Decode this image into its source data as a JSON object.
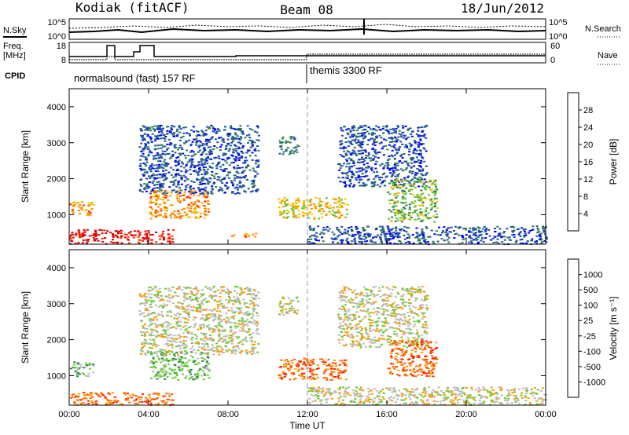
{
  "header": {
    "radar": "Kodiak (fitACF)",
    "beam": "Beam 08",
    "date": "18/Jun/2012"
  },
  "top_panels": {
    "nsky_label": "N.Sky",
    "nsearch_label": "N.Search",
    "noise_ticks": [
      "10^5",
      "10^0"
    ],
    "freq_label_1": "Freq.",
    "freq_label_2": "[MHz]",
    "freq_ticks": [
      "18",
      "8"
    ],
    "nave_label": "Nave",
    "nave_ticks": [
      "60",
      "0"
    ],
    "cpid_label": "CPID",
    "cpid_segments": [
      "normalsound (fast) 157 RF",
      "themis 3300 RF"
    ]
  },
  "chart_data": [
    {
      "type": "heatmap",
      "title": "",
      "xlabel": "",
      "ylabel": "Slant Range [km]",
      "xlim": [
        0,
        24
      ],
      "ylim": [
        180,
        4500
      ],
      "y_ticks": [
        "1000",
        "2000",
        "3000",
        "4000"
      ],
      "colorbar_label": "Power [dB]",
      "colorbar_ticks": [
        "4",
        "8",
        "12",
        "16",
        "20",
        "24",
        "28"
      ],
      "colorbar_colors": [
        "#0000ff",
        "#1f4fa8",
        "#2e7d57",
        "#5fbf3a",
        "#f5c000",
        "#ff8c00",
        "#ff3000",
        "#e00000"
      ],
      "echo_regions": [
        {
          "t0": 0.0,
          "t1": 5.2,
          "r0": 200,
          "r1": 600,
          "level": 7
        },
        {
          "t0": 0.0,
          "t1": 1.2,
          "r0": 1000,
          "r1": 1400,
          "level": 5
        },
        {
          "t0": 4.0,
          "t1": 7.0,
          "r0": 900,
          "r1": 1700,
          "level": 5
        },
        {
          "t0": 3.5,
          "t1": 9.5,
          "r0": 1600,
          "r1": 3500,
          "level": 1
        },
        {
          "t0": 8.0,
          "t1": 9.5,
          "r0": 400,
          "r1": 500,
          "level": 5
        },
        {
          "t0": 10.5,
          "t1": 14.0,
          "r0": 900,
          "r1": 1500,
          "level": 4
        },
        {
          "t0": 10.5,
          "t1": 11.5,
          "r0": 2700,
          "r1": 3200,
          "level": 2
        },
        {
          "t0": 13.5,
          "t1": 18.0,
          "r0": 1800,
          "r1": 3500,
          "level": 1
        },
        {
          "t0": 16.0,
          "t1": 18.5,
          "r0": 800,
          "r1": 2000,
          "level": 3
        },
        {
          "t0": 12.0,
          "t1": 24.0,
          "r0": 200,
          "r1": 700,
          "level": 1
        }
      ]
    },
    {
      "type": "heatmap",
      "title": "",
      "xlabel": "Time UT",
      "ylabel": "Slant Range [km]",
      "xlim": [
        0,
        24
      ],
      "ylim": [
        180,
        4500
      ],
      "x_ticks": [
        "00:00",
        "04:00",
        "08:00",
        "12:00",
        "16:00",
        "20:00",
        "00:00"
      ],
      "y_ticks": [
        "1000",
        "2000",
        "3000",
        "4000"
      ],
      "colorbar_label": "Velocity [m s⁻¹]",
      "colorbar_ticks": [
        "1000",
        "500",
        "100",
        "25",
        "-25",
        "-100",
        "-500",
        "-1000"
      ],
      "colorbar_colors": [
        "#1010a0",
        "#2050c0",
        "#2e7d57",
        "#66cc33",
        "#bbbbbb",
        "#ff9a00",
        "#ff6000",
        "#ff2000",
        "#e00000"
      ],
      "echo_regions": [
        {
          "t0": 0.0,
          "t1": 5.2,
          "r0": 200,
          "r1": 550,
          "level": 6
        },
        {
          "t0": 0.0,
          "t1": 1.2,
          "r0": 1000,
          "r1": 1400,
          "level": 3
        },
        {
          "t0": 4.0,
          "t1": 7.0,
          "r0": 900,
          "r1": 1700,
          "level": 3
        },
        {
          "t0": 3.5,
          "t1": 9.5,
          "r0": 1600,
          "r1": 3500,
          "level": 4
        },
        {
          "t0": 10.5,
          "t1": 14.0,
          "r0": 900,
          "r1": 1500,
          "level": 6
        },
        {
          "t0": 10.5,
          "t1": 11.5,
          "r0": 2700,
          "r1": 3200,
          "level": 4
        },
        {
          "t0": 13.5,
          "t1": 18.0,
          "r0": 1800,
          "r1": 3500,
          "level": 4
        },
        {
          "t0": 16.0,
          "t1": 18.5,
          "r0": 1000,
          "r1": 2000,
          "level": 6
        },
        {
          "t0": 12.0,
          "t1": 24.0,
          "r0": 200,
          "r1": 700,
          "level": 4
        }
      ]
    }
  ]
}
